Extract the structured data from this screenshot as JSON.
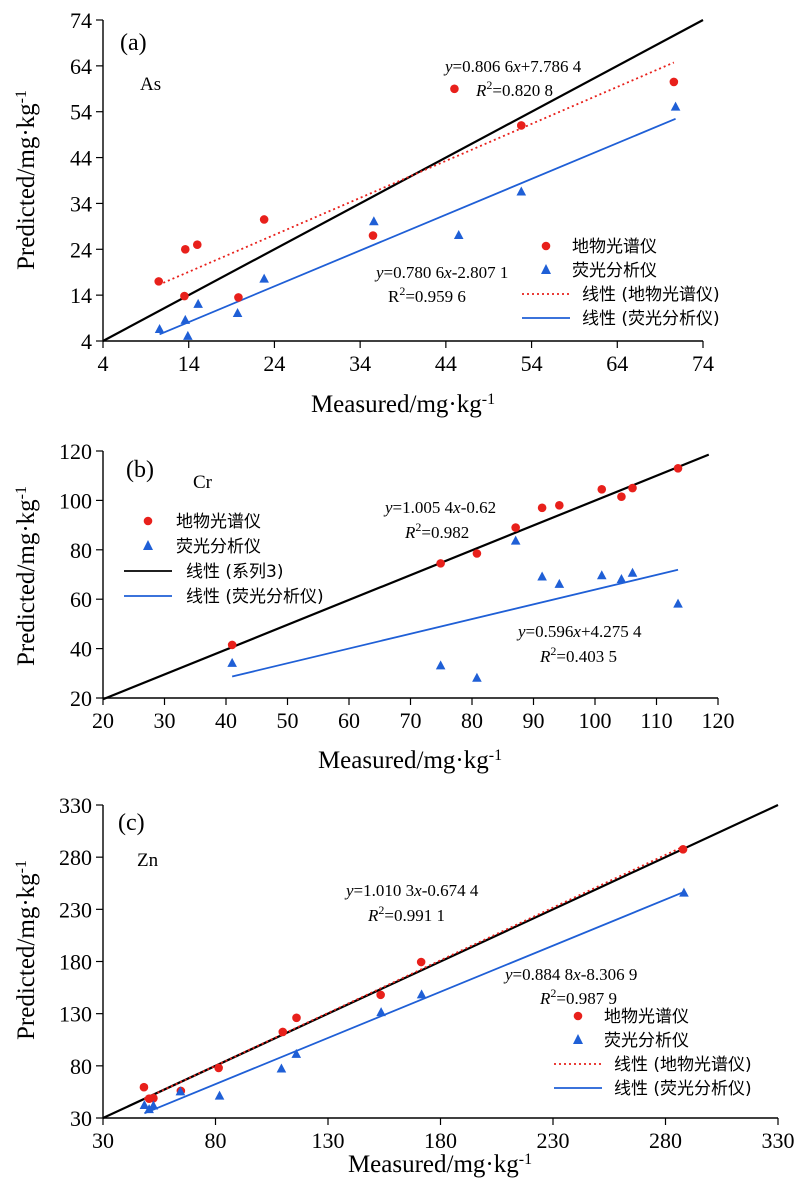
{
  "chart_data": [
    {
      "type": "scatter",
      "panel": "(a)",
      "element": "As",
      "xlabel": "Measured/mg·kg",
      "ylabel": "Predicted/mg·kg",
      "unit_exp": "-1",
      "xlim": [
        4,
        74
      ],
      "ylim": [
        4,
        74
      ],
      "xticks": [
        4,
        14,
        24,
        34,
        44,
        54,
        64,
        74
      ],
      "yticks": [
        4,
        14,
        24,
        34,
        44,
        54,
        64,
        74
      ],
      "identity_line": [
        [
          4,
          4
        ],
        [
          74,
          74
        ]
      ],
      "series": [
        {
          "name": "地物光谱仪",
          "marker": "circle",
          "color": "#e8201b",
          "x": [
            10.5,
            13.6,
            13.5,
            15.0,
            19.8,
            22.8,
            35.5,
            45.0,
            52.8,
            70.6
          ],
          "y": [
            17.0,
            24.0,
            13.8,
            25.0,
            13.5,
            30.5,
            27.0,
            59.0,
            51.0,
            60.5
          ]
        },
        {
          "name": "荧光分析仪",
          "marker": "triangle",
          "color": "#1f5fd6",
          "x": [
            10.6,
            13.6,
            13.9,
            15.1,
            19.7,
            22.8,
            35.6,
            45.5,
            52.8,
            70.8
          ],
          "y": [
            6.5,
            8.5,
            5.0,
            12.0,
            10.0,
            17.5,
            30.0,
            27.0,
            36.5,
            55.0
          ]
        }
      ],
      "trendlines": [
        {
          "name": "线性 (地物光谱仪)",
          "style": "dotted",
          "color": "#e8201b",
          "slope": 0.8066,
          "intercept": 7.7864,
          "x_range": [
            10.5,
            70.6
          ]
        },
        {
          "name": "线性 (荧光分析仪)",
          "style": "solid",
          "color": "#1f5fd6",
          "slope": 0.7806,
          "intercept": -2.8071,
          "x_range": [
            10.6,
            70.8
          ]
        }
      ],
      "legend": [
        "地物光谱仪",
        "荧光分析仪",
        "线性 (地物光谱仪)",
        "线性 (荧光分析仪)"
      ],
      "annotations": [
        {
          "id": "eq1",
          "parts": [
            "y",
            "=0.806 6",
            "x",
            "+7.786 4"
          ],
          "italic": [
            true,
            false,
            true,
            false
          ]
        },
        {
          "id": "r1",
          "parts": [
            "R",
            "2",
            "=0.820 8"
          ]
        },
        {
          "id": "eq2",
          "parts": [
            "y",
            "=0.780 6",
            "x",
            "-2.807 1"
          ],
          "italic": [
            true,
            false,
            true,
            false
          ]
        },
        {
          "id": "r2",
          "parts": [
            "R",
            "2",
            "=0.959 6"
          ]
        }
      ]
    },
    {
      "type": "scatter",
      "panel": "(b)",
      "element": "Cr",
      "xlabel": "Measured/mg·kg",
      "ylabel": "Predicted/mg·kg",
      "unit_exp": "-1",
      "xlim": [
        20,
        120
      ],
      "ylim": [
        20,
        120
      ],
      "xticks": [
        20,
        30,
        40,
        50,
        60,
        70,
        80,
        90,
        100,
        110,
        120
      ],
      "yticks": [
        20,
        40,
        60,
        80,
        100,
        120
      ],
      "series": [
        {
          "name": "地物光谱仪",
          "marker": "circle",
          "color": "#e8201b",
          "x": [
            41.0,
            74.9,
            80.8,
            87.1,
            91.4,
            94.2,
            101.1,
            104.3,
            106.1,
            113.5
          ],
          "y": [
            41.5,
            74.5,
            78.5,
            89.0,
            97.0,
            98.0,
            104.5,
            101.5,
            105.0,
            113.0
          ]
        },
        {
          "name": "荧光分析仪",
          "marker": "triangle",
          "color": "#1f5fd6",
          "x": [
            41.0,
            74.9,
            80.8,
            87.1,
            91.4,
            94.2,
            101.1,
            104.3,
            106.1,
            113.5
          ],
          "y": [
            34.0,
            33.0,
            28.0,
            83.5,
            69.0,
            66.0,
            69.5,
            68.0,
            70.5,
            58.0
          ]
        }
      ],
      "trendlines": [
        {
          "name": "线性 (系列3)",
          "style": "solid",
          "color": "#000000",
          "slope": 1.0054,
          "intercept": -0.62,
          "x_range": [
            20,
            118.5
          ]
        },
        {
          "name": "线性 (荧光分析仪)",
          "style": "solid",
          "color": "#1f5fd6",
          "slope": 0.596,
          "intercept": 4.2754,
          "x_range": [
            41.0,
            113.5
          ]
        }
      ],
      "legend": [
        "地物光谱仪",
        "荧光分析仪",
        "线性 (系列3)",
        "线性 (荧光分析仪)"
      ],
      "annotations": [
        {
          "id": "eq1",
          "parts": [
            "y",
            "=1.005 4",
            "x",
            "-0.62"
          ],
          "italic": [
            true,
            false,
            true,
            false
          ]
        },
        {
          "id": "r1",
          "parts": [
            "R",
            "2",
            "=0.982"
          ]
        },
        {
          "id": "eq2",
          "parts": [
            "y",
            "=0.596",
            "x",
            "+4.275 4"
          ],
          "italic": [
            true,
            false,
            true,
            false
          ]
        },
        {
          "id": "r2",
          "parts": [
            "R",
            "2",
            "=0.403 5"
          ]
        }
      ]
    },
    {
      "type": "scatter",
      "panel": "(c)",
      "element": "Zn",
      "xlabel": "Measured/mg·kg",
      "ylabel": "Predicted/mg·kg",
      "unit_exp": "-1",
      "xlim": [
        30,
        330
      ],
      "ylim": [
        30,
        330
      ],
      "xticks": [
        30,
        80,
        130,
        180,
        230,
        280,
        330
      ],
      "yticks": [
        30,
        80,
        130,
        180,
        230,
        280,
        330
      ],
      "identity_line": [
        [
          30,
          30
        ],
        [
          330,
          330
        ]
      ],
      "series": [
        {
          "name": "地物光谱仪",
          "marker": "circle",
          "color": "#e8201b",
          "x": [
            48.2,
            50.5,
            52.4,
            64.6,
            81.4,
            109.9,
            116.0,
            153.4,
            171.4,
            287.8
          ],
          "y": [
            59.5,
            48.5,
            49.0,
            56.0,
            78.0,
            112.5,
            126.0,
            148.0,
            179.5,
            287.5
          ]
        },
        {
          "name": "荧光分析仪",
          "marker": "triangle",
          "color": "#1f5fd6",
          "x": [
            48.4,
            50.5,
            52.4,
            64.4,
            81.8,
            109.3,
            115.9,
            153.6,
            171.6,
            288.2
          ],
          "y": [
            42.0,
            38.0,
            41.5,
            55.0,
            51.0,
            77.0,
            91.0,
            131.0,
            148.0,
            245.5
          ]
        }
      ],
      "trendlines": [
        {
          "name": "线性 (地物光谱仪)",
          "style": "dotted",
          "color": "#e8201b",
          "slope": 1.0103,
          "intercept": -0.6744,
          "x_range": [
            48.2,
            287.8
          ]
        },
        {
          "name": "线性 (荧光分析仪)",
          "style": "solid",
          "color": "#1f5fd6",
          "slope": 0.8848,
          "intercept": -8.3069,
          "x_range": [
            48.4,
            288.2
          ]
        }
      ],
      "legend": [
        "地物光谱仪",
        "荧光分析仪",
        "线性 (地物光谱仪)",
        "线性 (荧光分析仪)"
      ],
      "annotations": [
        {
          "id": "eq1",
          "parts": [
            "y",
            "=1.010 3",
            "x",
            "-0.674 4"
          ],
          "italic": [
            true,
            false,
            true,
            false
          ]
        },
        {
          "id": "r1",
          "parts": [
            "R",
            "2",
            "=0.991 1"
          ]
        },
        {
          "id": "eq2",
          "parts": [
            "y",
            "=0.884 8",
            "x",
            "-8.306 9"
          ],
          "italic": [
            true,
            false,
            true,
            false
          ]
        },
        {
          "id": "r2",
          "parts": [
            "R",
            "2",
            "=0.987 9"
          ]
        }
      ]
    }
  ]
}
